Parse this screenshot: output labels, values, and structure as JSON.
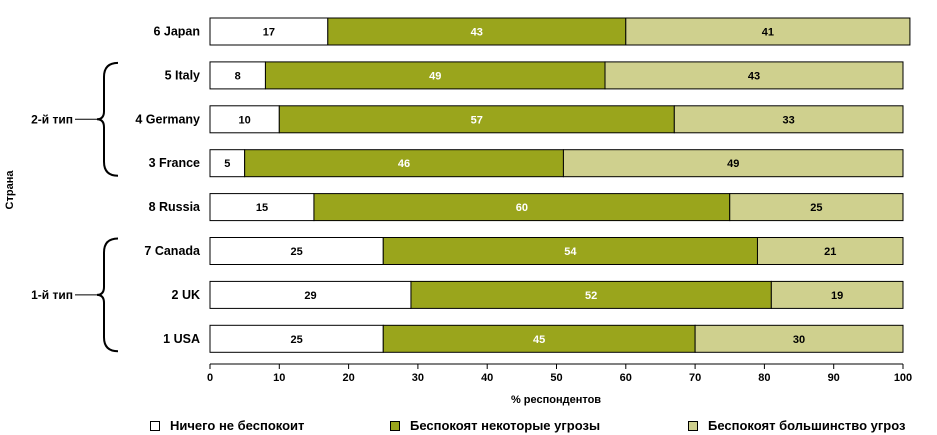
{
  "chart_data": {
    "type": "bar",
    "orientation": "horizontal",
    "stacked": true,
    "ylabel": "Страна",
    "xlabel": "% респондентов",
    "xlim": [
      0,
      100
    ],
    "xticks": [
      0,
      10,
      20,
      30,
      40,
      50,
      60,
      70,
      80,
      90,
      100
    ],
    "categories": [
      "6  Japan",
      "5  Italy",
      "4  Germany",
      "3  France",
      "8  Russia",
      "7  Canada",
      "2  UK",
      "1  USA"
    ],
    "series": [
      {
        "name": "Ничего не беспокоит",
        "color": "#ffffff",
        "label_color": "#000000",
        "values": [
          17,
          8,
          10,
          5,
          15,
          25,
          29,
          25
        ]
      },
      {
        "name": "Беспокоят некоторые угрозы",
        "color": "#9aa51c",
        "label_color": "#ffffff",
        "values": [
          43,
          49,
          57,
          46,
          60,
          54,
          52,
          45
        ]
      },
      {
        "name": "Беспокоят большинство угроз",
        "color": "#cfd08e",
        "label_color": "#000000",
        "values": [
          41,
          43,
          33,
          49,
          25,
          21,
          19,
          30
        ]
      }
    ],
    "groups": [
      {
        "label": "2-й тип",
        "first": 1,
        "last": 3
      },
      {
        "label": "1-й тип",
        "first": 5,
        "last": 7
      }
    ],
    "grid": false,
    "legend_position": "bottom"
  }
}
